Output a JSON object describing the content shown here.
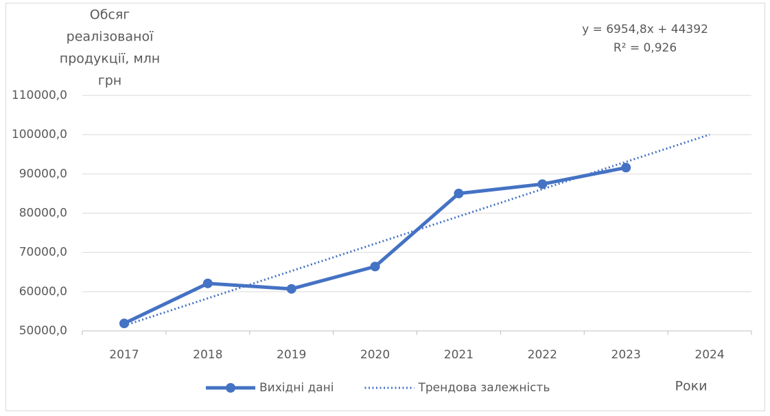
{
  "chart_data": {
    "type": "line",
    "y_label": [
      "Обсяг",
      "реалізованої",
      "продукції, млн",
      "грн"
    ],
    "x_label": "Роки",
    "annotations": [
      "y = 6954,8x + 44392",
      "R² = 0,926"
    ],
    "categories": [
      "2017",
      "2018",
      "2019",
      "2020",
      "2021",
      "2022",
      "2023",
      "2024"
    ],
    "series": [
      {
        "name": "Вихідні дані",
        "color": "#4472c4",
        "style": "solid",
        "markers": true,
        "values": [
          51900,
          62100,
          60700,
          66400,
          85000,
          87400,
          91600,
          null
        ]
      },
      {
        "name": "Трендова залежність",
        "color": "#4472c4",
        "style": "dotted",
        "markers": false,
        "values": [
          51346.8,
          58301.6,
          65256.4,
          72211.2,
          79166,
          86120.8,
          93075.6,
          100030.4
        ]
      }
    ],
    "ylim": [
      50000,
      110000
    ],
    "yticks": [
      {
        "value": 50000,
        "label": "50000,0"
      },
      {
        "value": 60000,
        "label": "60000,0"
      },
      {
        "value": 70000,
        "label": "70000,0"
      },
      {
        "value": 80000,
        "label": "80000,0"
      },
      {
        "value": 90000,
        "label": "90000,0"
      },
      {
        "value": 100000,
        "label": "100000,0"
      },
      {
        "value": 110000,
        "label": "110000,0"
      }
    ],
    "grid": true,
    "legend": "bottom"
  }
}
